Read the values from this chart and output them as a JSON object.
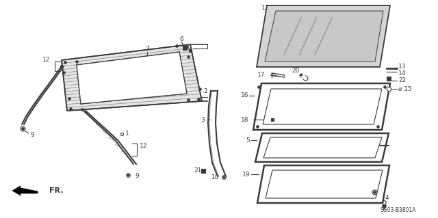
{
  "bg_color": "#ffffff",
  "diagram_code": "SG03-B3801A",
  "fr_label": "FR.",
  "line_color": "#3a3a3a",
  "gray_fill": "#d8d8d8",
  "light_gray": "#e8e8e8"
}
